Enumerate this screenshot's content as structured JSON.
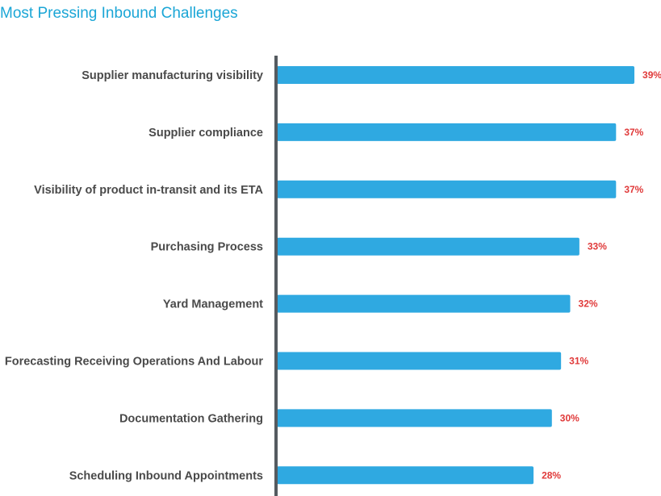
{
  "chart_data": {
    "type": "bar",
    "orientation": "horizontal",
    "title": "Most Pressing Inbound Challenges",
    "xlabel": "",
    "ylabel": "",
    "xlim": [
      0,
      40
    ],
    "grid": false,
    "legend": "none",
    "categories": [
      "Supplier manufacturing visibility",
      "Supplier compliance",
      "Visibility of product in-transit and its ETA",
      "Purchasing Process",
      "Yard Management",
      "Forecasting Receiving Operations And Labour",
      "Documentation Gathering",
      "Scheduling Inbound Appointments"
    ],
    "values": [
      39,
      37,
      37,
      33,
      32,
      31,
      30,
      28
    ],
    "value_labels": [
      "39%",
      "37%",
      "37%",
      "33%",
      "32%",
      "31%",
      "30%",
      "28%"
    ]
  },
  "colors": {
    "title": "#1ba6d6",
    "bar": "#2fa9e1",
    "axis": "#555b60",
    "category_text": "#4a4a4a",
    "value_text": "#e03a3a"
  }
}
